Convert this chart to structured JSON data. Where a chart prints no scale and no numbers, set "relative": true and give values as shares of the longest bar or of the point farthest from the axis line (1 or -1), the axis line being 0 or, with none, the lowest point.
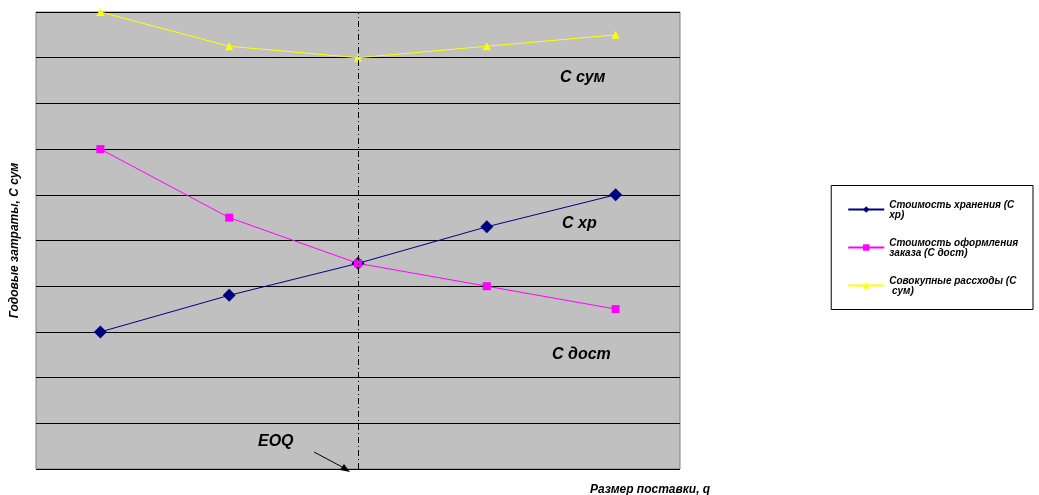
{
  "chart_data": {
    "type": "line",
    "relative": true,
    "xlabel": "Размер поставки, q",
    "ylabel": "Годовые затраты, С сум",
    "categories": [
      null,
      null,
      null,
      null,
      null
    ],
    "series": [
      {
        "name": "Стоимость хранения (С хр)",
        "color": "#000080",
        "marker": "diamond",
        "values": [
          0.3,
          0.38,
          0.45,
          0.53,
          0.6
        ]
      },
      {
        "name": "Стоимость оформления заказа (С дост)",
        "color": "#ff00ff",
        "marker": "square",
        "values": [
          0.7,
          0.55,
          0.45,
          0.4,
          0.35
        ]
      },
      {
        "name": "Совокупные рассходы (С сум)",
        "color": "#ffff00",
        "marker": "triangle",
        "values": [
          1,
          0.925,
          0.9,
          0.925,
          0.95
        ]
      }
    ],
    "annotations": [
      "С сум",
      "С хр",
      "С дост",
      "EOQ"
    ],
    "grid": true,
    "legend": "right",
    "line_style": "solid"
  }
}
